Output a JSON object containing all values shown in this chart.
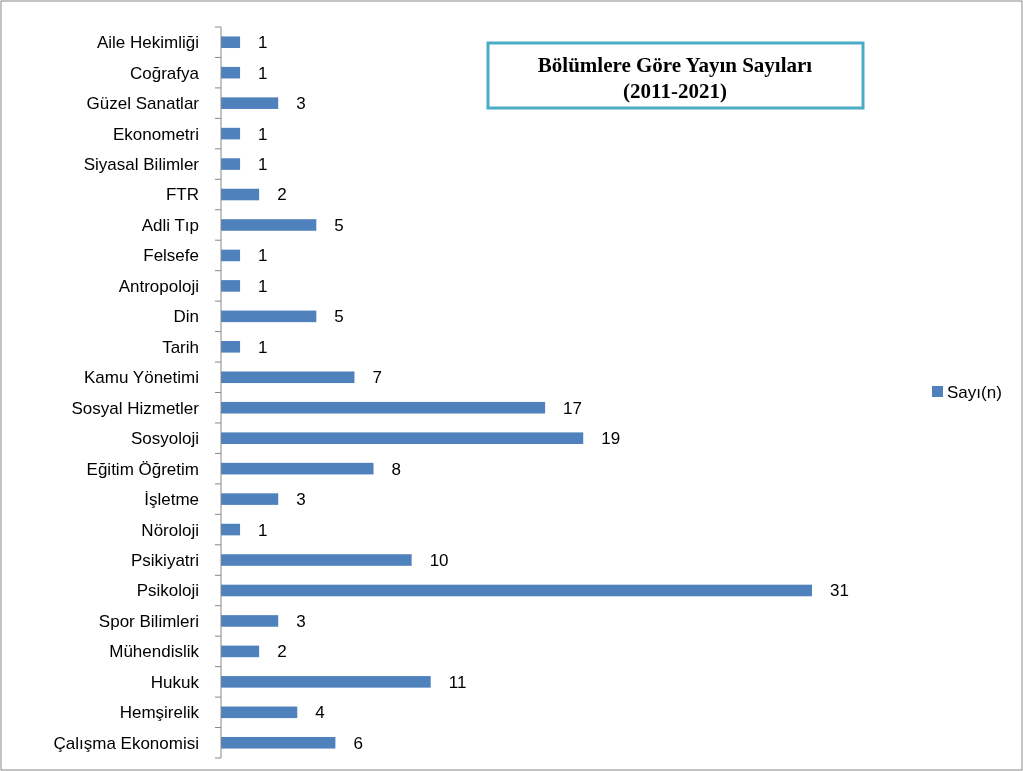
{
  "chart_data": {
    "type": "bar",
    "orientation": "horizontal",
    "title": "Bölümlere Göre Yayın Sayıları",
    "subtitle": "(2011-2021)",
    "categories": [
      "Aile Hekimliği",
      "Coğrafya",
      "Güzel Sanatlar",
      "Ekonometri",
      "Siyasal Bilimler",
      "FTR",
      "Adli Tıp",
      "Felsefe",
      "Antropoloji",
      "Din",
      "Tarih",
      "Kamu Yönetimi",
      "Sosyal Hizmetler",
      "Sosyoloji",
      "Eğitim Öğretim",
      "İşletme",
      "Nöroloji",
      "Psikiyatri",
      "Psikoloji",
      "Spor Bilimleri",
      "Mühendislik",
      "Hukuk",
      "Hemşirelik",
      "Çalışma Ekonomisi"
    ],
    "series": [
      {
        "name": "Sayı(n)",
        "color": "#4f81bd",
        "values": [
          1,
          1,
          3,
          1,
          1,
          2,
          5,
          1,
          1,
          5,
          1,
          7,
          17,
          19,
          8,
          3,
          1,
          10,
          31,
          3,
          2,
          11,
          4,
          6
        ]
      }
    ],
    "data_labels": true,
    "legend": "right"
  }
}
